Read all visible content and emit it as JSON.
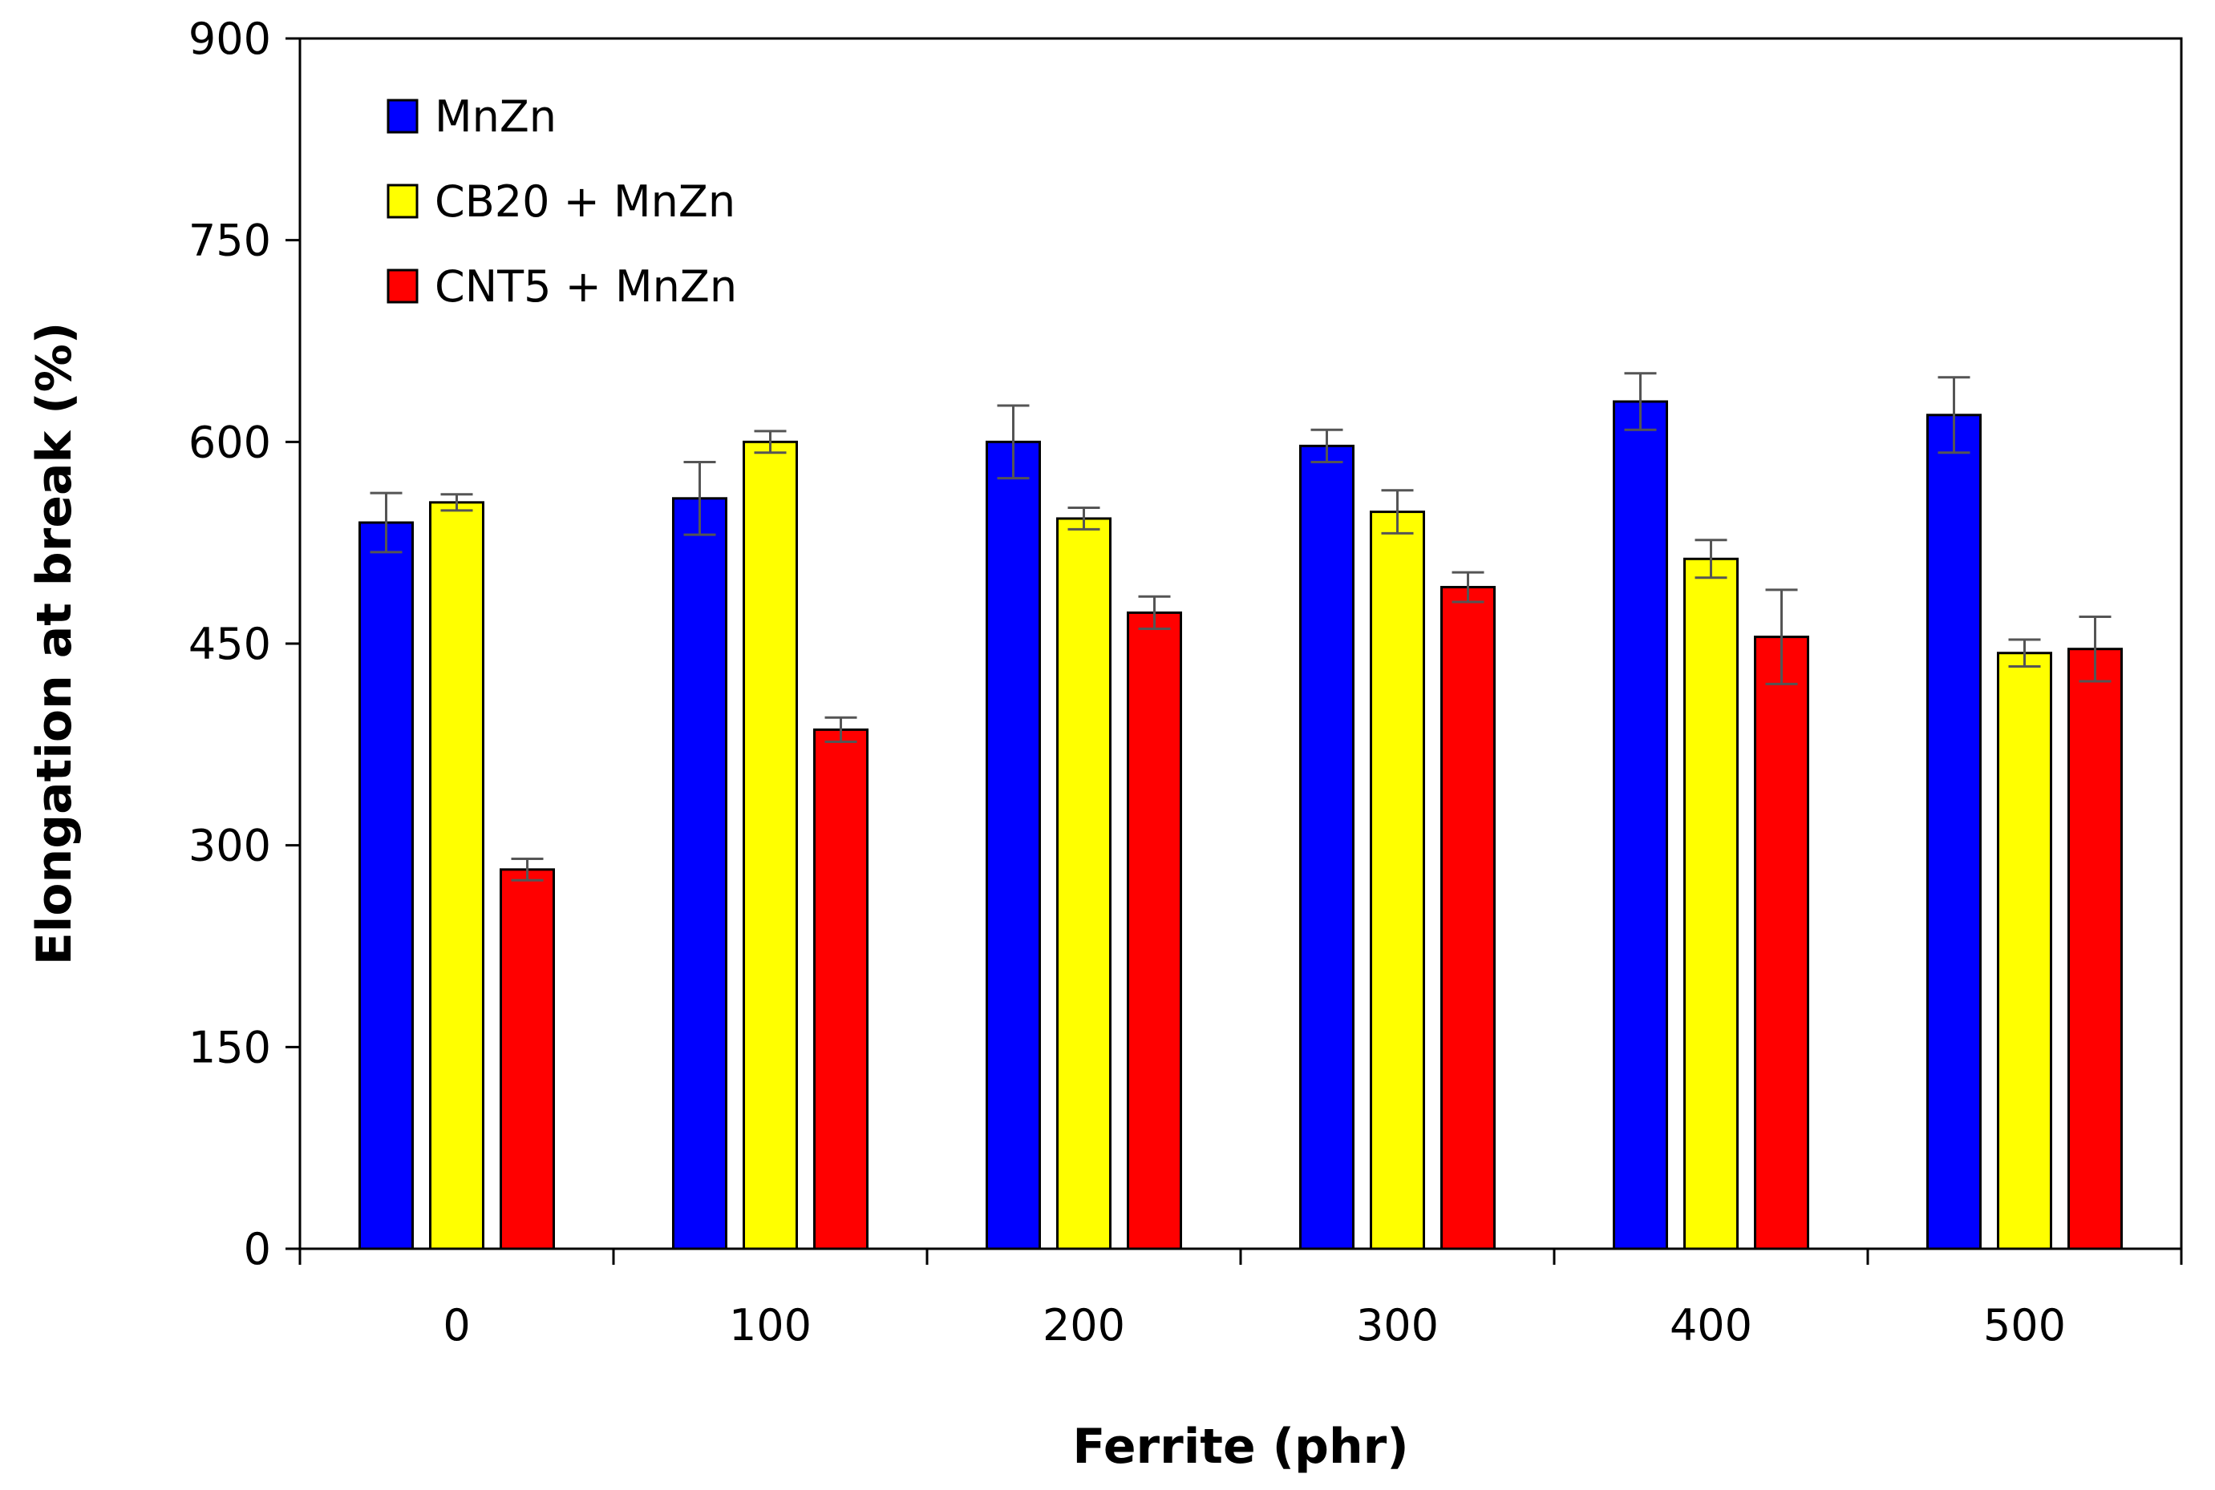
{
  "chart_data": {
    "type": "bar",
    "title": "",
    "xlabel": "Ferrite (phr)",
    "ylabel": "Elongation at break (%)",
    "ylim": [
      0,
      900
    ],
    "yticks": [
      0,
      150,
      300,
      450,
      600,
      750,
      900
    ],
    "categories": [
      "0",
      "100",
      "200",
      "300",
      "400",
      "500"
    ],
    "legend_position": "top-left",
    "grid": false,
    "series": [
      {
        "name": "MnZn",
        "color": "#0000ff",
        "values": [
          540,
          558,
          600,
          597,
          630,
          620
        ],
        "errors": [
          22,
          27,
          27,
          12,
          21,
          28
        ]
      },
      {
        "name": "CB20 + MnZn",
        "color": "#ffff00",
        "values": [
          555,
          600,
          543,
          548,
          513,
          443
        ],
        "errors": [
          6,
          8,
          8,
          16,
          14,
          10
        ]
      },
      {
        "name": "CNT5 + MnZn",
        "color": "#ff0000",
        "values": [
          282,
          386,
          473,
          492,
          455,
          446
        ],
        "errors": [
          8,
          9,
          12,
          11,
          35,
          24
        ]
      }
    ]
  }
}
